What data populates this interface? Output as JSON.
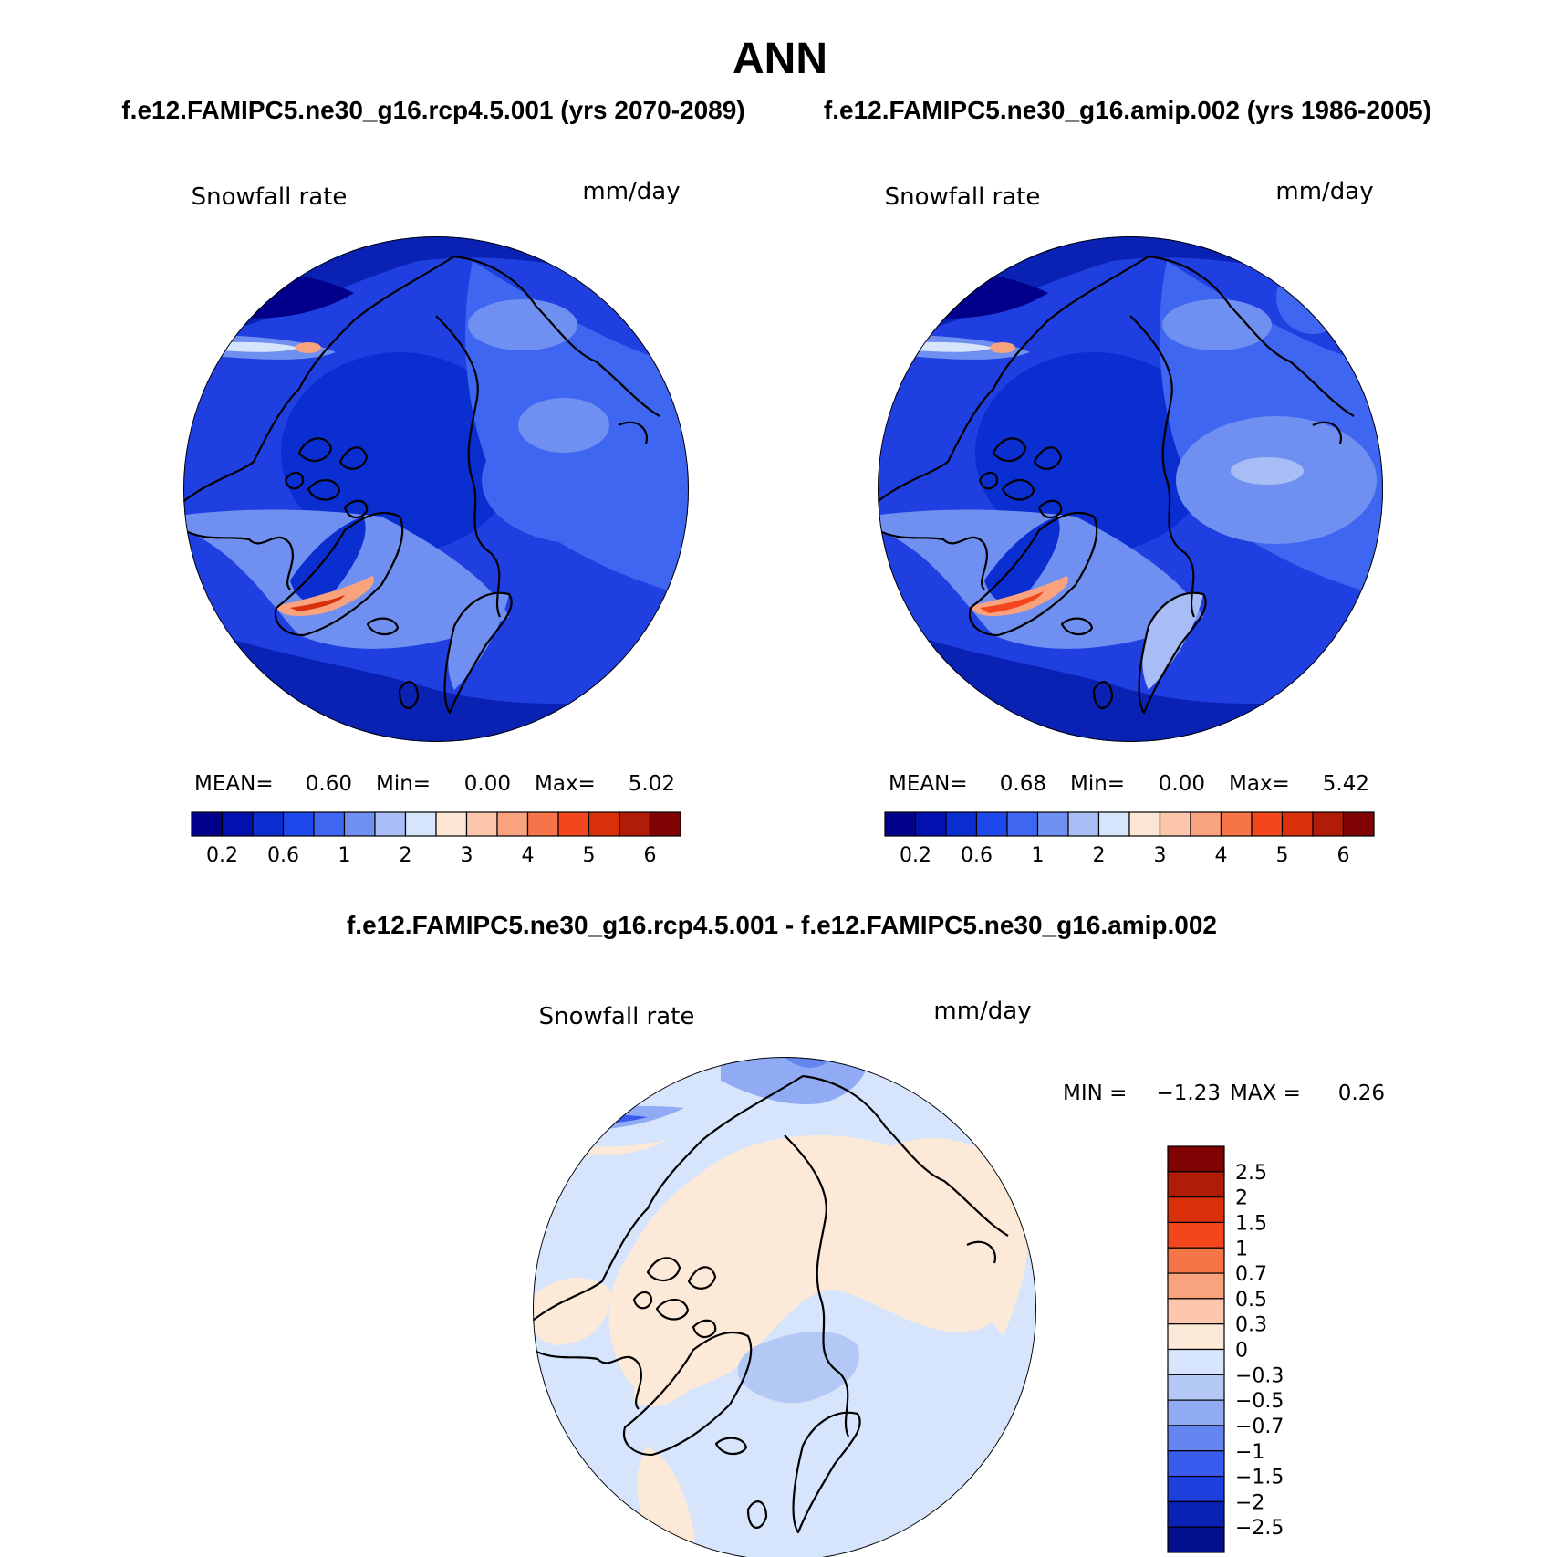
{
  "figure": {
    "title": "ANN",
    "subtitle_left": "f.e12.FAMIPC5.ne30_g16.rcp4.5.001 (yrs 2070-2089)",
    "subtitle_right": "f.e12.FAMIPC5.ne30_g16.amip.002 (yrs 1986-2005)",
    "diff_title": "f.e12.FAMIPC5.ne30_g16.rcp4.5.001 - f.e12.FAMIPC5.ne30_g16.amip.002"
  },
  "colors": {
    "abs_scale": [
      "#02008a",
      "#0011b0",
      "#0a2ed0",
      "#1d49ec",
      "#3f66f0",
      "#7090f1",
      "#a8bdf5",
      "#d6e5fb",
      "#fde5d3",
      "#fcc7ac",
      "#f9a27e",
      "#f67548",
      "#f4461c",
      "#d9300a",
      "#b01c05",
      "#800303"
    ],
    "diff_scale": [
      "#800303",
      "#b01c05",
      "#d9300a",
      "#f4461c",
      "#f67548",
      "#f9a27e",
      "#fcc7ac",
      "#fde9d8",
      "#d6e5fb",
      "#b4c8f6",
      "#90aaf4",
      "#6585f0",
      "#3a5cee",
      "#1c3fde",
      "#0a22b4",
      "#020f8a"
    ]
  },
  "chart_data": [
    {
      "type": "heatmap",
      "panel": "left",
      "projection": "polar-stereographic",
      "title": "Snowfall rate",
      "units": "mm/day",
      "stats": {
        "mean_label": "MEAN=",
        "mean": "0.60",
        "min_label": "Min=",
        "min": "0.00",
        "max_label": "Max=",
        "max": "5.02"
      },
      "colorbar_levels": [
        "0.2",
        "0.6",
        "1",
        "2",
        "3",
        "4",
        "5",
        "6"
      ]
    },
    {
      "type": "heatmap",
      "panel": "right",
      "projection": "polar-stereographic",
      "title": "Snowfall rate",
      "units": "mm/day",
      "stats": {
        "mean_label": "MEAN=",
        "mean": "0.68",
        "min_label": "Min=",
        "min": "0.00",
        "max_label": "Max=",
        "max": "5.42"
      },
      "colorbar_levels": [
        "0.2",
        "0.6",
        "1",
        "2",
        "3",
        "4",
        "5",
        "6"
      ]
    },
    {
      "type": "heatmap",
      "panel": "difference",
      "projection": "polar-stereographic",
      "title": "Snowfall rate",
      "units": "mm/day",
      "stats": {
        "min_label": "MIN =",
        "min": "−1.23",
        "max_label": "MAX =",
        "max": "0.26"
      },
      "colorbar_levels": [
        "2.5",
        "2",
        "1.5",
        "1",
        "0.7",
        "0.5",
        "0.3",
        "0",
        "−0.3",
        "−0.5",
        "−0.7",
        "−1",
        "−1.5",
        "−2",
        "−2.5"
      ]
    }
  ]
}
